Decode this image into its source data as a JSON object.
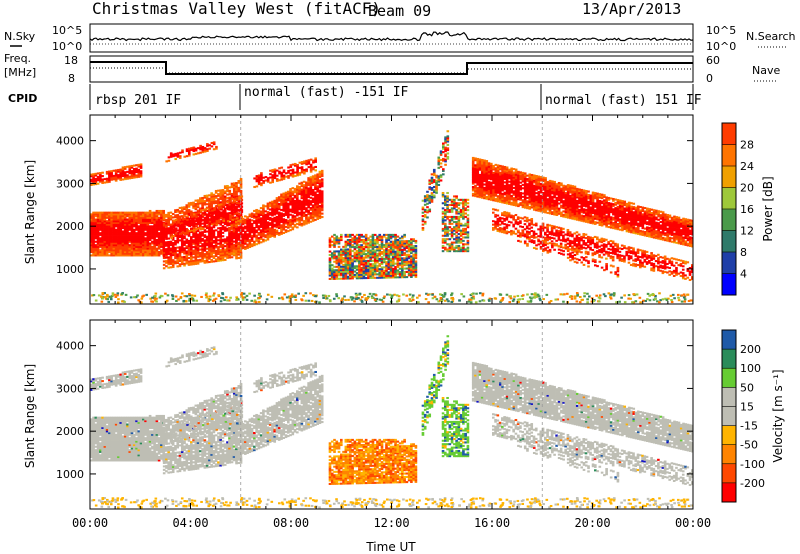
{
  "header": {
    "station": "Christmas Valley West (fitACF)",
    "beam": "Beam 09",
    "date": "13/Apr/2013"
  },
  "top_panels": {
    "nsky_label": "N.Sky",
    "nsearch_label": "N.Search",
    "noise_ticks": [
      "10^5",
      "10^0"
    ],
    "freq_label_1": "Freq.",
    "freq_label_2": "[MHz]",
    "freq_ticks": [
      "18",
      "8"
    ],
    "nave_label": "Nave",
    "nave_ticks": [
      "60",
      "0"
    ],
    "cpid_label": "CPID",
    "cpid_segments": [
      {
        "label": "rbsp 201 IF",
        "start_hour": 0
      },
      {
        "label": "normal (fast) -151 IF",
        "start_hour": 6
      },
      {
        "label": "normal (fast) 151 IF",
        "start_hour": 18
      }
    ]
  },
  "colors": {
    "power_scale": [
      "#0000ff",
      "#1f3fa8",
      "#2f7a6a",
      "#4a9a4a",
      "#9ec83a",
      "#f0a000",
      "#ff7400",
      "#ff3c00",
      "#ff0000"
    ],
    "velocity_scale": [
      "#ff0000",
      "#ff4800",
      "#ff8400",
      "#ffb400",
      "#bebeb4",
      "#bebeb4",
      "#66cc33",
      "#2a8c5a",
      "#1f5aa8",
      "#1010c8"
    ]
  },
  "chart_data": [
    {
      "type": "heatmap",
      "title": "Power",
      "ylabel": "Slant Range [km]",
      "xlabel": "",
      "x_range_hours": [
        0,
        24
      ],
      "ylim": [
        180,
        4600
      ],
      "yticks": [
        1000,
        2000,
        3000,
        4000
      ],
      "colorbar_label": "Power [dB]",
      "colorbar_ticks": [
        "4",
        "8",
        "12",
        "16",
        "20",
        "24",
        "28"
      ],
      "colorbar_range": [
        0,
        32
      ]
    },
    {
      "type": "heatmap",
      "title": "Velocity",
      "ylabel": "Slant Range [km]",
      "xlabel": "Time UT",
      "x_range_hours": [
        0,
        24
      ],
      "ylim": [
        180,
        4600
      ],
      "yticks": [
        1000,
        2000,
        3000,
        4000
      ],
      "xticks": [
        "00:00",
        "04:00",
        "08:00",
        "12:00",
        "16:00",
        "20:00",
        "00:00"
      ],
      "colorbar_label": "Velocity [m s⁻¹]",
      "colorbar_ticks": [
        "-200",
        "-100",
        "-50",
        "-15",
        "15",
        "50",
        "100",
        "200"
      ]
    }
  ]
}
